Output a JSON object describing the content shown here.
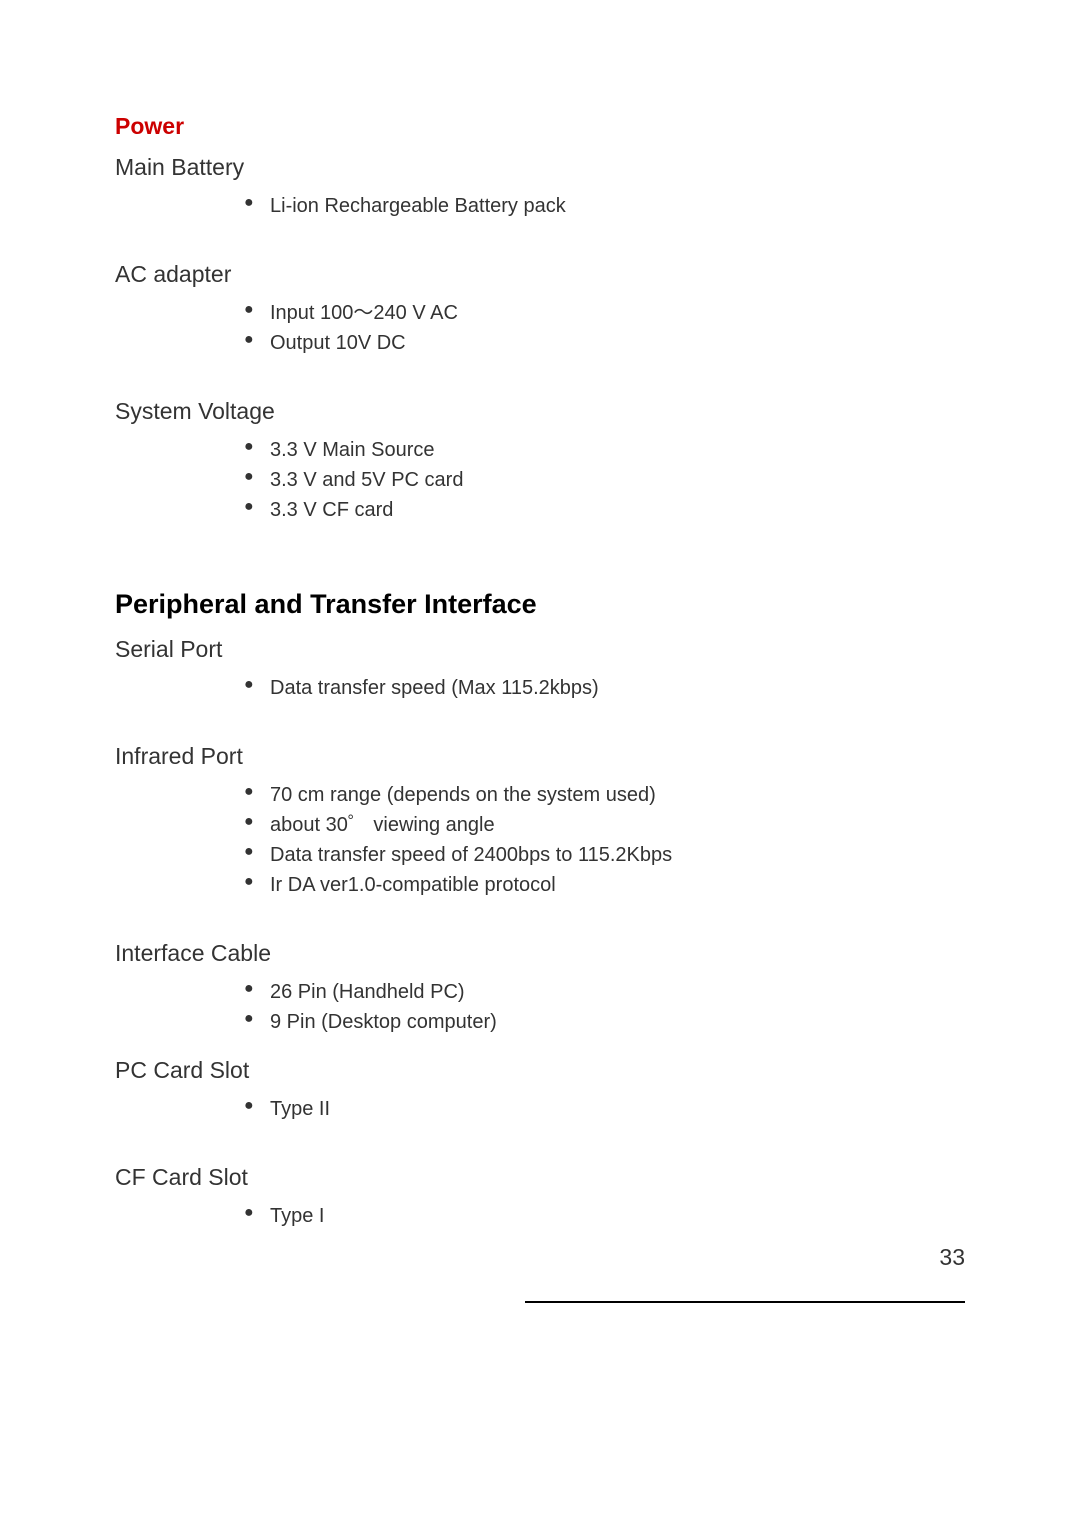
{
  "colors": {
    "heading_red": "#cc0000",
    "text_black": "#000000",
    "text_gray": "#333333",
    "background": "#ffffff",
    "footer_line": "#000000"
  },
  "typography": {
    "section_heading_red_fontsize": 23,
    "section_heading_black_fontsize": 27,
    "subsection_label_fontsize": 23,
    "bullet_item_fontsize": 20,
    "page_number_fontsize": 23,
    "font_family": "Arial, Helvetica, sans-serif"
  },
  "power": {
    "heading": "Power",
    "main_battery": {
      "label": "Main Battery",
      "items": [
        "Li-ion Rechargeable Battery pack"
      ]
    },
    "ac_adapter": {
      "label": "AC adapter",
      "items": [
        "Input 100～240 V AC",
        "Output 10V DC"
      ]
    },
    "system_voltage": {
      "label": "System Voltage",
      "items": [
        "3.3 V Main Source",
        "3.3 V and 5V  PC card",
        "3.3 V CF card"
      ]
    }
  },
  "peripheral": {
    "heading": "Peripheral and Transfer Interface",
    "serial_port": {
      "label": "Serial Port",
      "items": [
        "Data transfer speed  (Max 115.2kbps)"
      ]
    },
    "infrared_port": {
      "label": "Infrared Port",
      "items": [
        "70 cm range (depends on the system used)",
        "about 30゜ viewing angle",
        "Data transfer speed of 2400bps to 115.2Kbps",
        "Ir DA ver1.0-compatible protocol"
      ]
    },
    "interface_cable": {
      "label": "Interface Cable",
      "items": [
        "26 Pin (Handheld PC)",
        "9 Pin (Desktop computer)"
      ]
    },
    "pc_card_slot": {
      "label": "PC Card Slot",
      "items": [
        "Type II"
      ]
    },
    "cf_card_slot": {
      "label": "CF Card Slot",
      "items": [
        "Type I"
      ]
    }
  },
  "page_number": "33"
}
